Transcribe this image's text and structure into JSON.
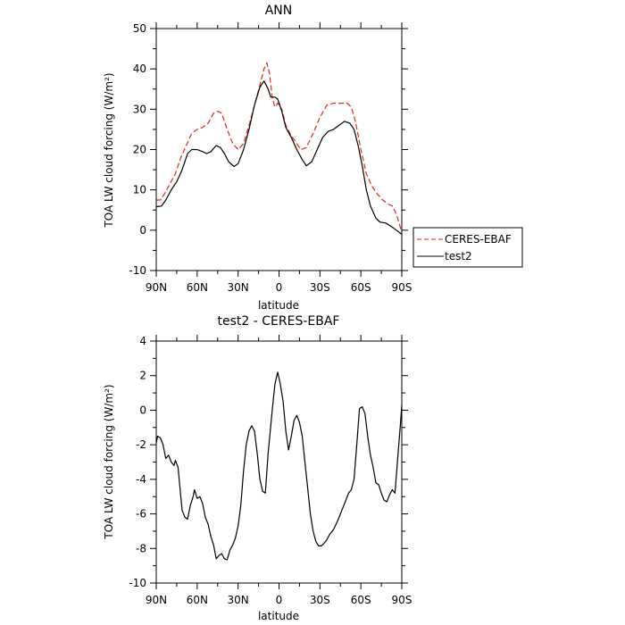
{
  "chart_data": [
    {
      "type": "line",
      "title": "ANN",
      "xlabel": "latitude",
      "ylabel": "TOA LW cloud forcing (W/m²)",
      "xlim": [
        90,
        -90
      ],
      "ylim": [
        -10,
        50
      ],
      "xticks": [
        {
          "v": 90,
          "label": "90N"
        },
        {
          "v": 60,
          "label": "60N"
        },
        {
          "v": 30,
          "label": "30N"
        },
        {
          "v": 0,
          "label": "0"
        },
        {
          "v": -30,
          "label": "30S"
        },
        {
          "v": -60,
          "label": "60S"
        },
        {
          "v": -90,
          "label": "90S"
        }
      ],
      "yticks": [
        -10,
        0,
        10,
        20,
        30,
        40,
        50
      ],
      "legend": {
        "placement": "right",
        "entries": [
          "CERES-EBAF",
          "test2"
        ]
      },
      "series": [
        {
          "name": "CERES-EBAF",
          "color": "#e8231e",
          "dash": "dashed",
          "points": [
            [
              90,
              7.5
            ],
            [
              87,
              7.5
            ],
            [
              84,
              9
            ],
            [
              80,
              11.5
            ],
            [
              76,
              14
            ],
            [
              72,
              18
            ],
            [
              68,
              21
            ],
            [
              64,
              24
            ],
            [
              60,
              25
            ],
            [
              56,
              25.5
            ],
            [
              52,
              26.5
            ],
            [
              48,
              29
            ],
            [
              45,
              29.5
            ],
            [
              42,
              29
            ],
            [
              38,
              25
            ],
            [
              34,
              21.5
            ],
            [
              30,
              20
            ],
            [
              26,
              21.5
            ],
            [
              22,
              26
            ],
            [
              18,
              31
            ],
            [
              14,
              36
            ],
            [
              11,
              40
            ],
            [
              9,
              41.5
            ],
            [
              7,
              39
            ],
            [
              5,
              33
            ],
            [
              3,
              30.5
            ],
            [
              1,
              31.5
            ],
            [
              -2,
              30
            ],
            [
              -5,
              26
            ],
            [
              -8,
              24
            ],
            [
              -12,
              22
            ],
            [
              -16,
              20
            ],
            [
              -20,
              20.5
            ],
            [
              -25,
              24
            ],
            [
              -30,
              28
            ],
            [
              -35,
              31
            ],
            [
              -40,
              31.5
            ],
            [
              -45,
              31.5
            ],
            [
              -50,
              31.5
            ],
            [
              -53,
              30.5
            ],
            [
              -56,
              27
            ],
            [
              -60,
              20
            ],
            [
              -64,
              14
            ],
            [
              -68,
              11
            ],
            [
              -72,
              9
            ],
            [
              -76,
              7.5
            ],
            [
              -80,
              6.5
            ],
            [
              -83,
              6
            ],
            [
              -86,
              4
            ],
            [
              -90,
              -0.5
            ]
          ]
        },
        {
          "name": "test2",
          "color": "#000000",
          "dash": "solid",
          "points": [
            [
              90,
              5.8
            ],
            [
              86,
              6
            ],
            [
              83,
              7.5
            ],
            [
              79,
              10
            ],
            [
              75,
              12
            ],
            [
              71,
              15
            ],
            [
              67,
              19
            ],
            [
              64,
              20
            ],
            [
              60,
              20
            ],
            [
              56,
              19.5
            ],
            [
              53,
              19
            ],
            [
              50,
              19.5
            ],
            [
              46,
              21
            ],
            [
              43,
              20.5
            ],
            [
              40,
              19
            ],
            [
              37,
              17
            ],
            [
              33,
              15.8
            ],
            [
              30,
              16.5
            ],
            [
              26,
              20
            ],
            [
              22,
              25
            ],
            [
              18,
              31
            ],
            [
              14,
              35.5
            ],
            [
              11,
              37
            ],
            [
              8,
              35
            ],
            [
              6,
              33
            ],
            [
              3,
              33
            ],
            [
              1,
              32.5
            ],
            [
              -2,
              29.5
            ],
            [
              -5,
              25.5
            ],
            [
              -9,
              23
            ],
            [
              -13,
              20
            ],
            [
              -17,
              17.5
            ],
            [
              -20,
              16
            ],
            [
              -24,
              17
            ],
            [
              -28,
              20
            ],
            [
              -32,
              23
            ],
            [
              -36,
              24.5
            ],
            [
              -40,
              25
            ],
            [
              -44,
              26
            ],
            [
              -48,
              27
            ],
            [
              -52,
              26.5
            ],
            [
              -55,
              25
            ],
            [
              -58,
              21
            ],
            [
              -61,
              16
            ],
            [
              -64,
              10
            ],
            [
              -67,
              6
            ],
            [
              -71,
              3
            ],
            [
              -74,
              2
            ],
            [
              -78,
              1.8
            ],
            [
              -82,
              1
            ],
            [
              -86,
              0
            ],
            [
              -90,
              -1
            ]
          ]
        }
      ]
    },
    {
      "type": "line",
      "title": "test2 - CERES-EBAF",
      "xlabel": "latitude",
      "ylabel": "TOA LW cloud forcing (W/m²)",
      "xlim": [
        90,
        -90
      ],
      "ylim": [
        -10,
        4
      ],
      "xticks": [
        {
          "v": 90,
          "label": "90N"
        },
        {
          "v": 60,
          "label": "60N"
        },
        {
          "v": 30,
          "label": "30N"
        },
        {
          "v": 0,
          "label": "0"
        },
        {
          "v": -30,
          "label": "30S"
        },
        {
          "v": -60,
          "label": "60S"
        },
        {
          "v": -90,
          "label": "90S"
        }
      ],
      "yticks": [
        -10,
        -8,
        -6,
        -4,
        -2,
        0,
        2,
        4
      ],
      "series": [
        {
          "color": "#000000",
          "dash": "solid",
          "points": [
            [
              90,
              -1.9
            ],
            [
              89,
              -1.5
            ],
            [
              87,
              -1.6
            ],
            [
              85,
              -2
            ],
            [
              83,
              -2.8
            ],
            [
              81,
              -2.6
            ],
            [
              79,
              -3
            ],
            [
              77,
              -3.2
            ],
            [
              76,
              -2.9
            ],
            [
              74,
              -3.3
            ],
            [
              72,
              -5
            ],
            [
              71,
              -5.8
            ],
            [
              69,
              -6.2
            ],
            [
              67,
              -6.3
            ],
            [
              65,
              -5.5
            ],
            [
              63,
              -5
            ],
            [
              62,
              -4.6
            ],
            [
              60,
              -5.1
            ],
            [
              58,
              -5
            ],
            [
              56,
              -5.4
            ],
            [
              54,
              -6.2
            ],
            [
              52,
              -6.6
            ],
            [
              50,
              -7.3
            ],
            [
              48,
              -7.8
            ],
            [
              46,
              -8.6
            ],
            [
              44,
              -8.4
            ],
            [
              42,
              -8.3
            ],
            [
              40,
              -8.6
            ],
            [
              38,
              -8.65
            ],
            [
              36,
              -8.1
            ],
            [
              34,
              -7.8
            ],
            [
              32,
              -7.4
            ],
            [
              30,
              -6.7
            ],
            [
              28,
              -5.5
            ],
            [
              26,
              -3.5
            ],
            [
              24,
              -2
            ],
            [
              22,
              -1.2
            ],
            [
              20,
              -0.9
            ],
            [
              18,
              -1.2
            ],
            [
              16,
              -2.5
            ],
            [
              14,
              -4
            ],
            [
              12,
              -4.7
            ],
            [
              10,
              -4.8
            ],
            [
              8,
              -2.5
            ],
            [
              5,
              0
            ],
            [
              3,
              1.5
            ],
            [
              1,
              2.2
            ],
            [
              -1,
              1.5
            ],
            [
              -3,
              0.5
            ],
            [
              -5,
              -1.2
            ],
            [
              -7,
              -2.3
            ],
            [
              -9,
              -1.5
            ],
            [
              -11,
              -0.6
            ],
            [
              -13,
              -0.3
            ],
            [
              -15,
              -0.7
            ],
            [
              -17,
              -1.5
            ],
            [
              -19,
              -3
            ],
            [
              -21,
              -4.5
            ],
            [
              -23,
              -6
            ],
            [
              -25,
              -7
            ],
            [
              -27,
              -7.6
            ],
            [
              -29,
              -7.85
            ],
            [
              -31,
              -7.85
            ],
            [
              -33,
              -7.7
            ],
            [
              -35,
              -7.5
            ],
            [
              -37,
              -7.2
            ],
            [
              -40,
              -6.9
            ],
            [
              -43,
              -6.4
            ],
            [
              -46,
              -5.8
            ],
            [
              -49,
              -5.2
            ],
            [
              -51,
              -4.8
            ],
            [
              -53,
              -4.6
            ],
            [
              -55,
              -4
            ],
            [
              -57,
              -2
            ],
            [
              -59,
              0.1
            ],
            [
              -61,
              0.2
            ],
            [
              -63,
              -0.2
            ],
            [
              -65,
              -1.5
            ],
            [
              -67,
              -2.6
            ],
            [
              -69,
              -3.3
            ],
            [
              -71,
              -4.2
            ],
            [
              -73,
              -4.3
            ],
            [
              -75,
              -4.8
            ],
            [
              -77,
              -5.2
            ],
            [
              -79,
              -5.3
            ],
            [
              -81,
              -4.9
            ],
            [
              -83,
              -4.6
            ],
            [
              -85,
              -4.8
            ],
            [
              -87,
              -2.8
            ],
            [
              -89,
              -0.8
            ],
            [
              -90,
              0.3
            ]
          ]
        }
      ]
    }
  ]
}
